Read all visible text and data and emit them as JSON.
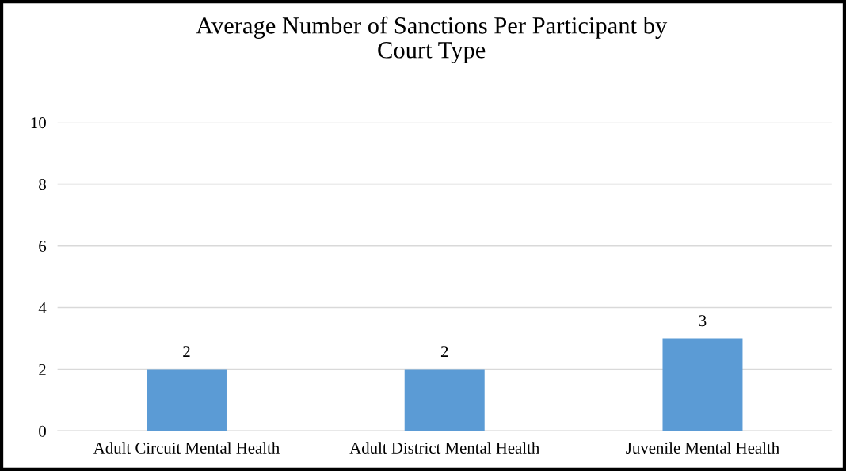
{
  "chart_data": {
    "type": "bar",
    "title": "Average Number of Sanctions Per Participant by\nCourt Type",
    "categories": [
      "Adult Circuit Mental Health",
      "Adult District Mental Health",
      "Juvenile Mental Health"
    ],
    "values": [
      2,
      2,
      3
    ],
    "color": "#5b9bd5",
    "ylim": [
      0,
      10
    ],
    "yticks": [
      0,
      2,
      4,
      6,
      8,
      10
    ],
    "grid": "y",
    "data_labels": true,
    "legend": false
  }
}
